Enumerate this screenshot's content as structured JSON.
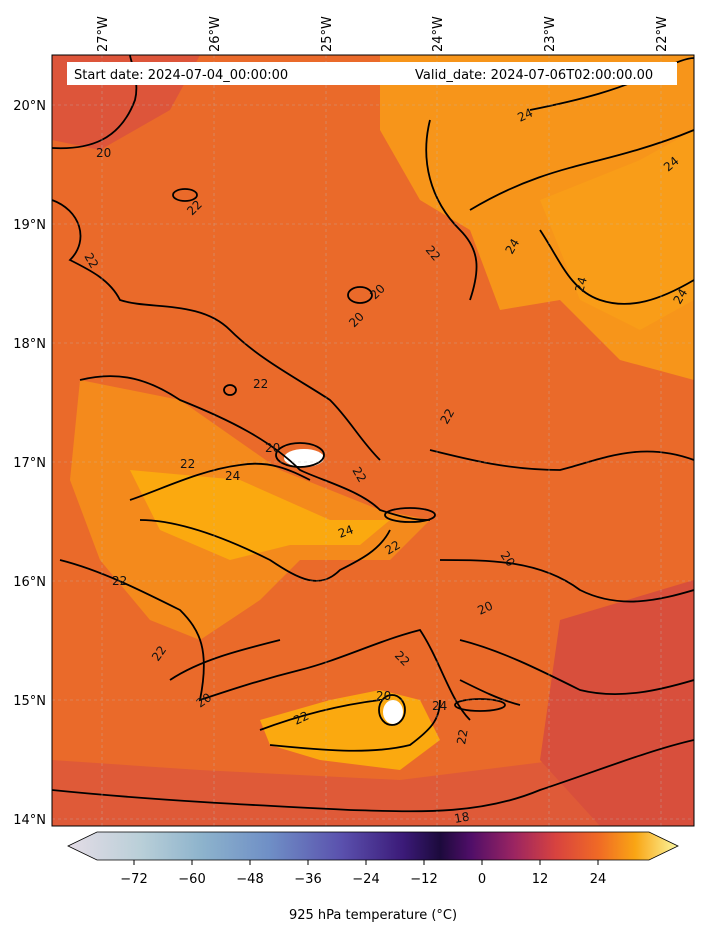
{
  "map": {
    "start_date": "Start date: 2024-07-04_00:00:00",
    "valid_date": "Valid_date: 2024-07-06T02:00:00.00",
    "lon_labels": [
      "27°W",
      "26°W",
      "25°W",
      "24°W",
      "23°W",
      "22°W"
    ],
    "lat_labels": [
      "20°N",
      "19°N",
      "18°N",
      "17°N",
      "16°N",
      "15°N",
      "14°N"
    ],
    "contour_labels": [
      "20",
      "22",
      "24",
      "18"
    ],
    "colors": {
      "warm_low": "#d84f3c",
      "warm_mid": "#ea6a2a",
      "warm_high": "#f7951a",
      "peak": "#fba90f",
      "contour": "#000000"
    }
  },
  "colorbar": {
    "ticks": [
      "−72",
      "−60",
      "−48",
      "−36",
      "−24",
      "−12",
      "0",
      "12",
      "24"
    ],
    "label": "925 hPa temperature (°C)",
    "colormap": "inferno_reversed_cold"
  }
}
